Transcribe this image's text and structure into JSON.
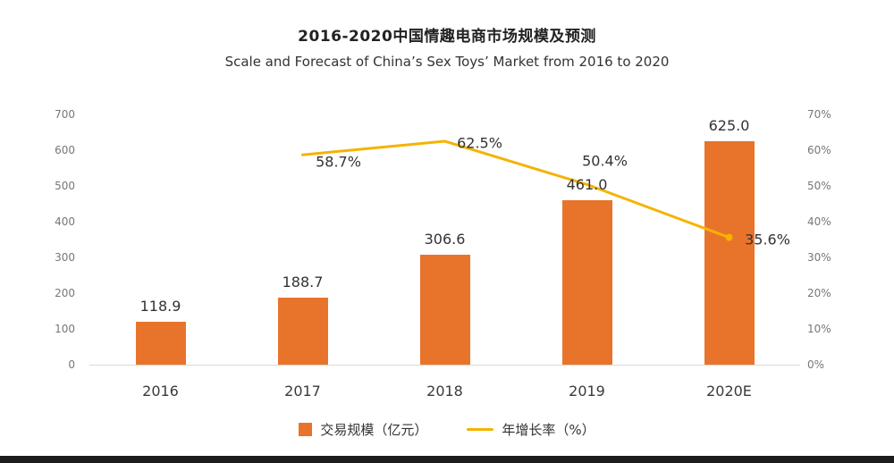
{
  "page": {
    "title": "2016-2020中国情趣电商市场规模及预测",
    "subtitle": "Scale and Forecast of China’s Sex Toys’ Market from 2016 to 2020"
  },
  "chart_data": {
    "type": "bar+line combo",
    "title": "2016-2020中国情趣电商市场规模及预测",
    "subtitle": "Scale and Forecast of China’s Sex Toys’ Market from 2016 to 2020",
    "categories": [
      "2016",
      "2017",
      "2018",
      "2019",
      "2020E"
    ],
    "series": [
      {
        "name": "交易规模（亿元）",
        "type": "bar",
        "axis": "left",
        "values": [
          118.9,
          188.7,
          306.6,
          461.0,
          625.0
        ],
        "labels": [
          "118.9",
          "188.7",
          "306.6",
          "461.0",
          "625.0"
        ]
      },
      {
        "name": "年增长率（%）",
        "type": "line",
        "axis": "right",
        "values": [
          null,
          58.7,
          62.5,
          50.4,
          35.6
        ],
        "labels": [
          "",
          "58.7%",
          "62.5%",
          "50.4%",
          "35.6%"
        ]
      }
    ],
    "left_axis": {
      "min": 0,
      "max": 700,
      "step": 100,
      "ticks": [
        "0",
        "100",
        "200",
        "300",
        "400",
        "500",
        "600",
        "700"
      ]
    },
    "right_axis": {
      "min": 0,
      "max": 70,
      "step": 10,
      "ticks": [
        "0%",
        "10%",
        "20%",
        "30%",
        "40%",
        "50%",
        "60%",
        "70%"
      ]
    },
    "legend": [
      {
        "label": "交易规模（亿元）",
        "swatch": "bar"
      },
      {
        "label": "年增长率（%）",
        "swatch": "line"
      }
    ],
    "legend_position": "bottom",
    "grid": false,
    "colors": {
      "bar": "#E8742B",
      "line": "#F5B301",
      "title_text": "#222222",
      "axis_text": "#777777",
      "label_text": "#333333",
      "baseline": "#d9d9d9",
      "bottom_strip": "#1c1c1c"
    }
  }
}
